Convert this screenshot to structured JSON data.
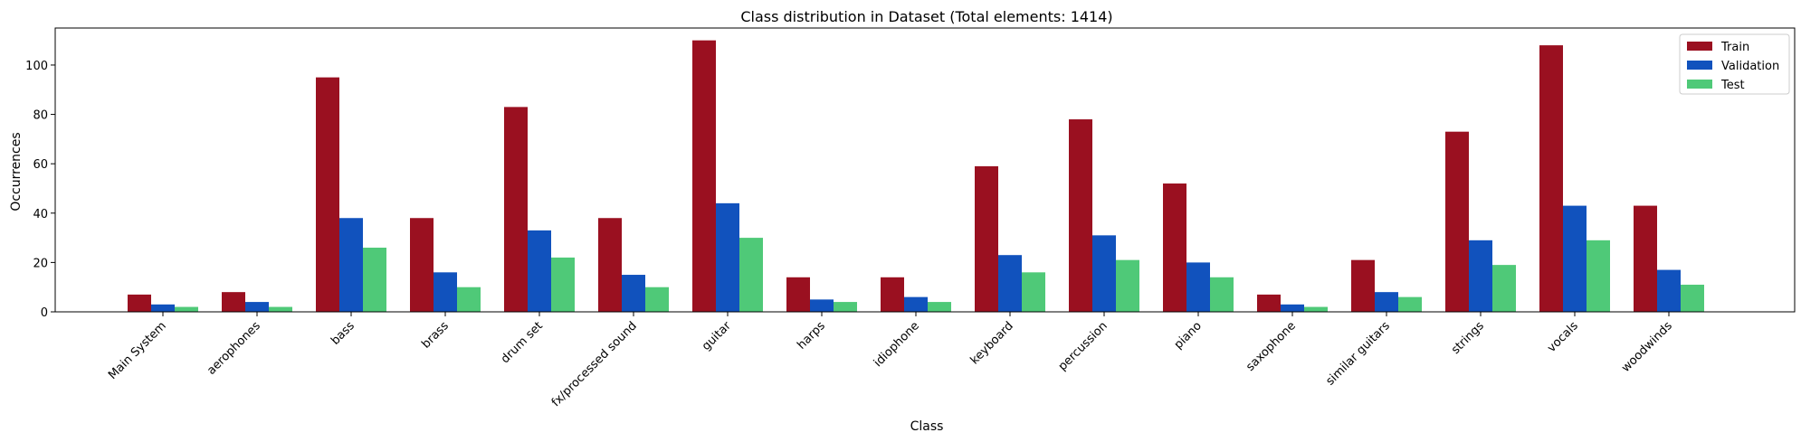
{
  "chart_data": {
    "type": "bar",
    "title": "Class distribution in Dataset (Total elements: 1414)",
    "xlabel": "Class",
    "ylabel": "Occurrences",
    "ylim": [
      0,
      115
    ],
    "yticks": [
      0,
      20,
      40,
      60,
      80,
      100
    ],
    "grid": false,
    "legend_position": "top-right",
    "categories": [
      "Main System",
      "aerophones",
      "bass",
      "brass",
      "drum set",
      "fx/processed sound",
      "guitar",
      "harps",
      "idiophone",
      "keyboard",
      "percussion",
      "piano",
      "saxophone",
      "similar guitars",
      "strings",
      "vocals",
      "woodwinds"
    ],
    "series": [
      {
        "name": "Train",
        "color": "#9a1020",
        "values": [
          7,
          8,
          95,
          38,
          83,
          38,
          110,
          14,
          14,
          59,
          78,
          52,
          7,
          21,
          73,
          108,
          43
        ]
      },
      {
        "name": "Validation",
        "color": "#1152bd",
        "values": [
          3,
          4,
          38,
          16,
          33,
          15,
          44,
          5,
          6,
          23,
          31,
          20,
          3,
          8,
          29,
          43,
          17
        ]
      },
      {
        "name": "Test",
        "color": "#4fc978",
        "values": [
          2,
          2,
          26,
          10,
          22,
          10,
          30,
          4,
          4,
          16,
          21,
          14,
          2,
          6,
          19,
          29,
          11
        ]
      }
    ]
  }
}
